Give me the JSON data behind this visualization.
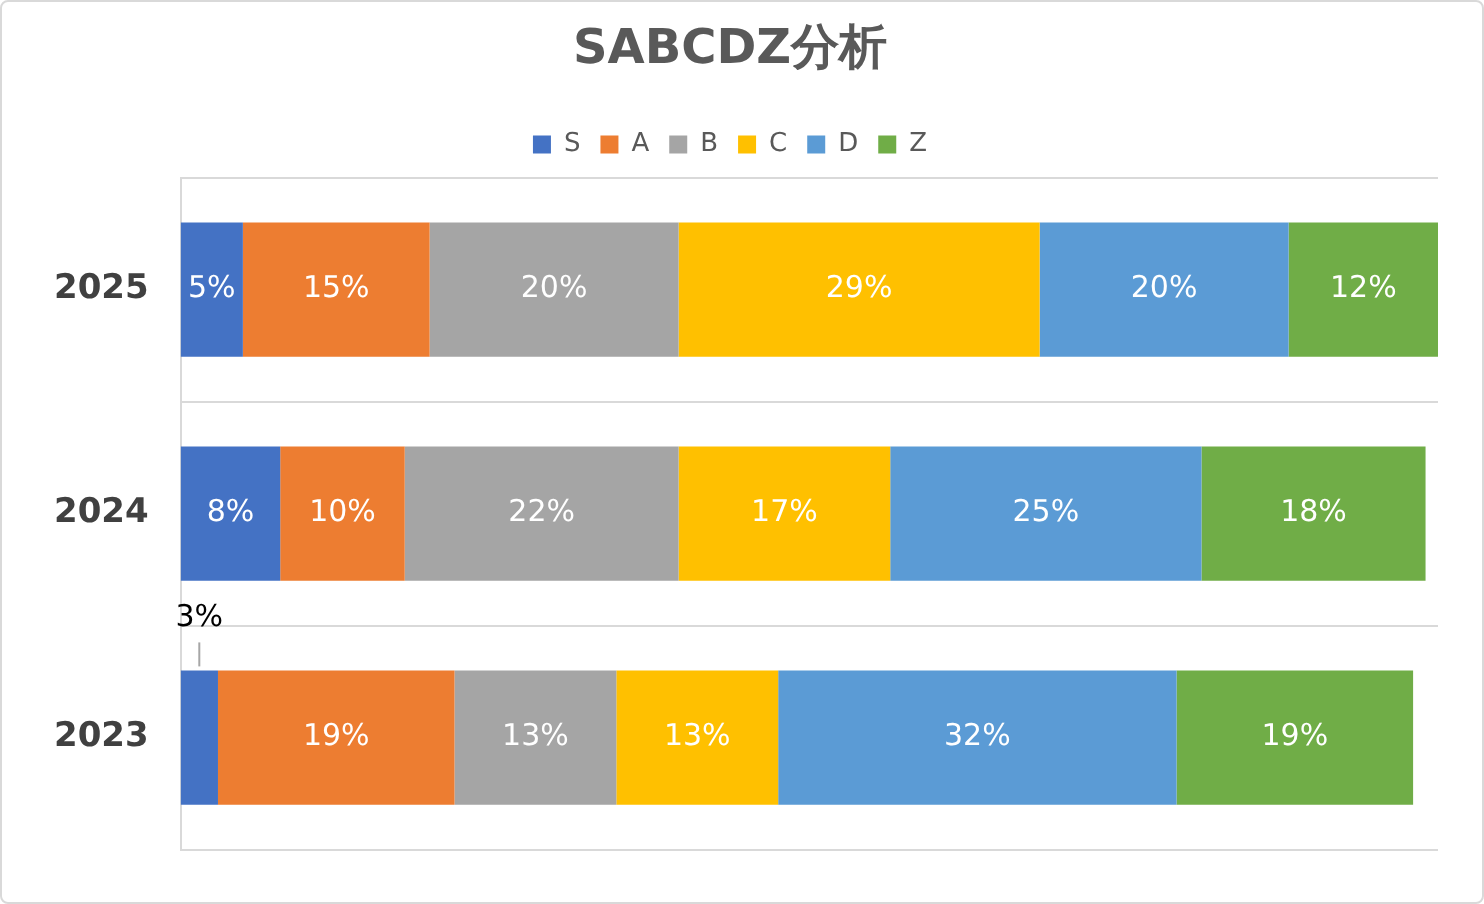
{
  "chart_data": {
    "type": "bar",
    "title": "SABCDZ分析",
    "orientation": "horizontal",
    "stacked": true,
    "tick_labels": "y",
    "legend": "top",
    "grid": "y",
    "categories": [
      "2025",
      "2024",
      "2023"
    ],
    "series": [
      {
        "name": "S",
        "color": "#4472c4",
        "values": [
          5,
          8,
          3
        ],
        "value_labels": [
          "5%",
          "8%",
          "3%"
        ]
      },
      {
        "name": "A",
        "color": "#ed7d31",
        "values": [
          15,
          10,
          19
        ],
        "value_labels": [
          "15%",
          "10%",
          "19%"
        ]
      },
      {
        "name": "B",
        "color": "#a5a5a5",
        "values": [
          20,
          22,
          13
        ],
        "value_labels": [
          "20%",
          "22%",
          "13%"
        ]
      },
      {
        "name": "C",
        "color": "#ffc000",
        "values": [
          29,
          17,
          13
        ],
        "value_labels": [
          "29%",
          "17%",
          "13%"
        ]
      },
      {
        "name": "D",
        "color": "#5b9bd5",
        "values": [
          20,
          25,
          32
        ],
        "value_labels": [
          "20%",
          "25%",
          "32%"
        ]
      },
      {
        "name": "Z",
        "color": "#70ad47",
        "values": [
          12,
          18,
          19
        ],
        "value_labels": [
          "12%",
          "18%",
          "19%"
        ]
      }
    ]
  }
}
